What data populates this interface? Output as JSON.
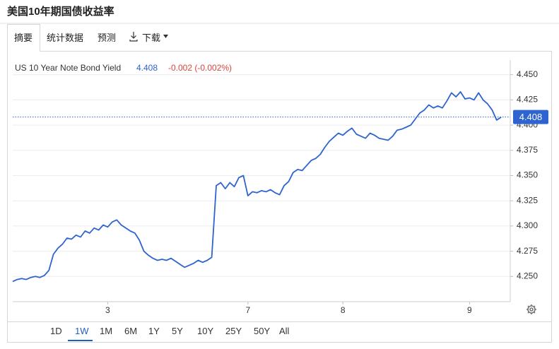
{
  "page": {
    "title": "美国10年期国债收益率",
    "tabs": [
      "摘要",
      "统计数据",
      "预测",
      "下载"
    ],
    "ranges": [
      "1D",
      "1W",
      "1M",
      "6M",
      "1Y",
      "5Y",
      "10Y",
      "25Y",
      "50Y",
      "All"
    ]
  },
  "chart_data": {
    "type": "line",
    "series": [
      {
        "name": "US 10 Year Note Bond Yield",
        "color": "#2f63d0",
        "values": [
          4.245,
          4.247,
          4.248,
          4.247,
          4.249,
          4.25,
          4.249,
          4.251,
          4.256,
          4.272,
          4.278,
          4.282,
          4.288,
          4.287,
          4.291,
          4.289,
          4.295,
          4.293,
          4.298,
          4.296,
          4.301,
          4.299,
          4.304,
          4.306,
          4.301,
          4.298,
          4.295,
          4.293,
          4.286,
          4.275,
          4.271,
          4.268,
          4.266,
          4.267,
          4.266,
          4.268,
          4.265,
          4.262,
          4.259,
          4.261,
          4.263,
          4.266,
          4.264,
          4.266,
          4.269,
          4.34,
          4.343,
          4.337,
          4.343,
          4.339,
          4.348,
          4.35,
          4.33,
          4.334,
          4.333,
          4.335,
          4.334,
          4.336,
          4.333,
          4.331,
          4.34,
          4.344,
          4.353,
          4.356,
          4.355,
          4.36,
          4.365,
          4.367,
          4.371,
          4.378,
          4.384,
          4.388,
          4.392,
          4.39,
          4.394,
          4.397,
          4.391,
          4.389,
          4.387,
          4.392,
          4.39,
          4.387,
          4.386,
          4.385,
          4.389,
          4.395,
          4.396,
          4.398,
          4.4,
          4.406,
          4.412,
          4.415,
          4.42,
          4.417,
          4.419,
          4.417,
          4.424,
          4.432,
          4.428,
          4.433,
          4.426,
          4.427,
          4.425,
          4.432,
          4.425,
          4.421,
          4.415,
          4.405,
          4.408
        ]
      }
    ],
    "last_value": 4.408,
    "change": "-0.002 (-0.002%)",
    "xlim": [
      0,
      110
    ],
    "xticks": [
      {
        "value": 21,
        "label": "3"
      },
      {
        "value": 52,
        "label": "7"
      },
      {
        "value": 73,
        "label": "8"
      },
      {
        "value": 101,
        "label": "9"
      }
    ],
    "ylim": [
      4.225,
      4.461
    ],
    "yticks": [
      {
        "value": 4.25,
        "label": "4.250"
      },
      4.275,
      {
        "value": 4.3,
        "label": "4.300"
      },
      4.325,
      {
        "value": 4.35,
        "label": "4.350"
      },
      4.375,
      {
        "value": 4.4,
        "label": "4.400"
      },
      4.425,
      {
        "value": 4.45,
        "label": "4.450"
      }
    ],
    "grid": true
  }
}
